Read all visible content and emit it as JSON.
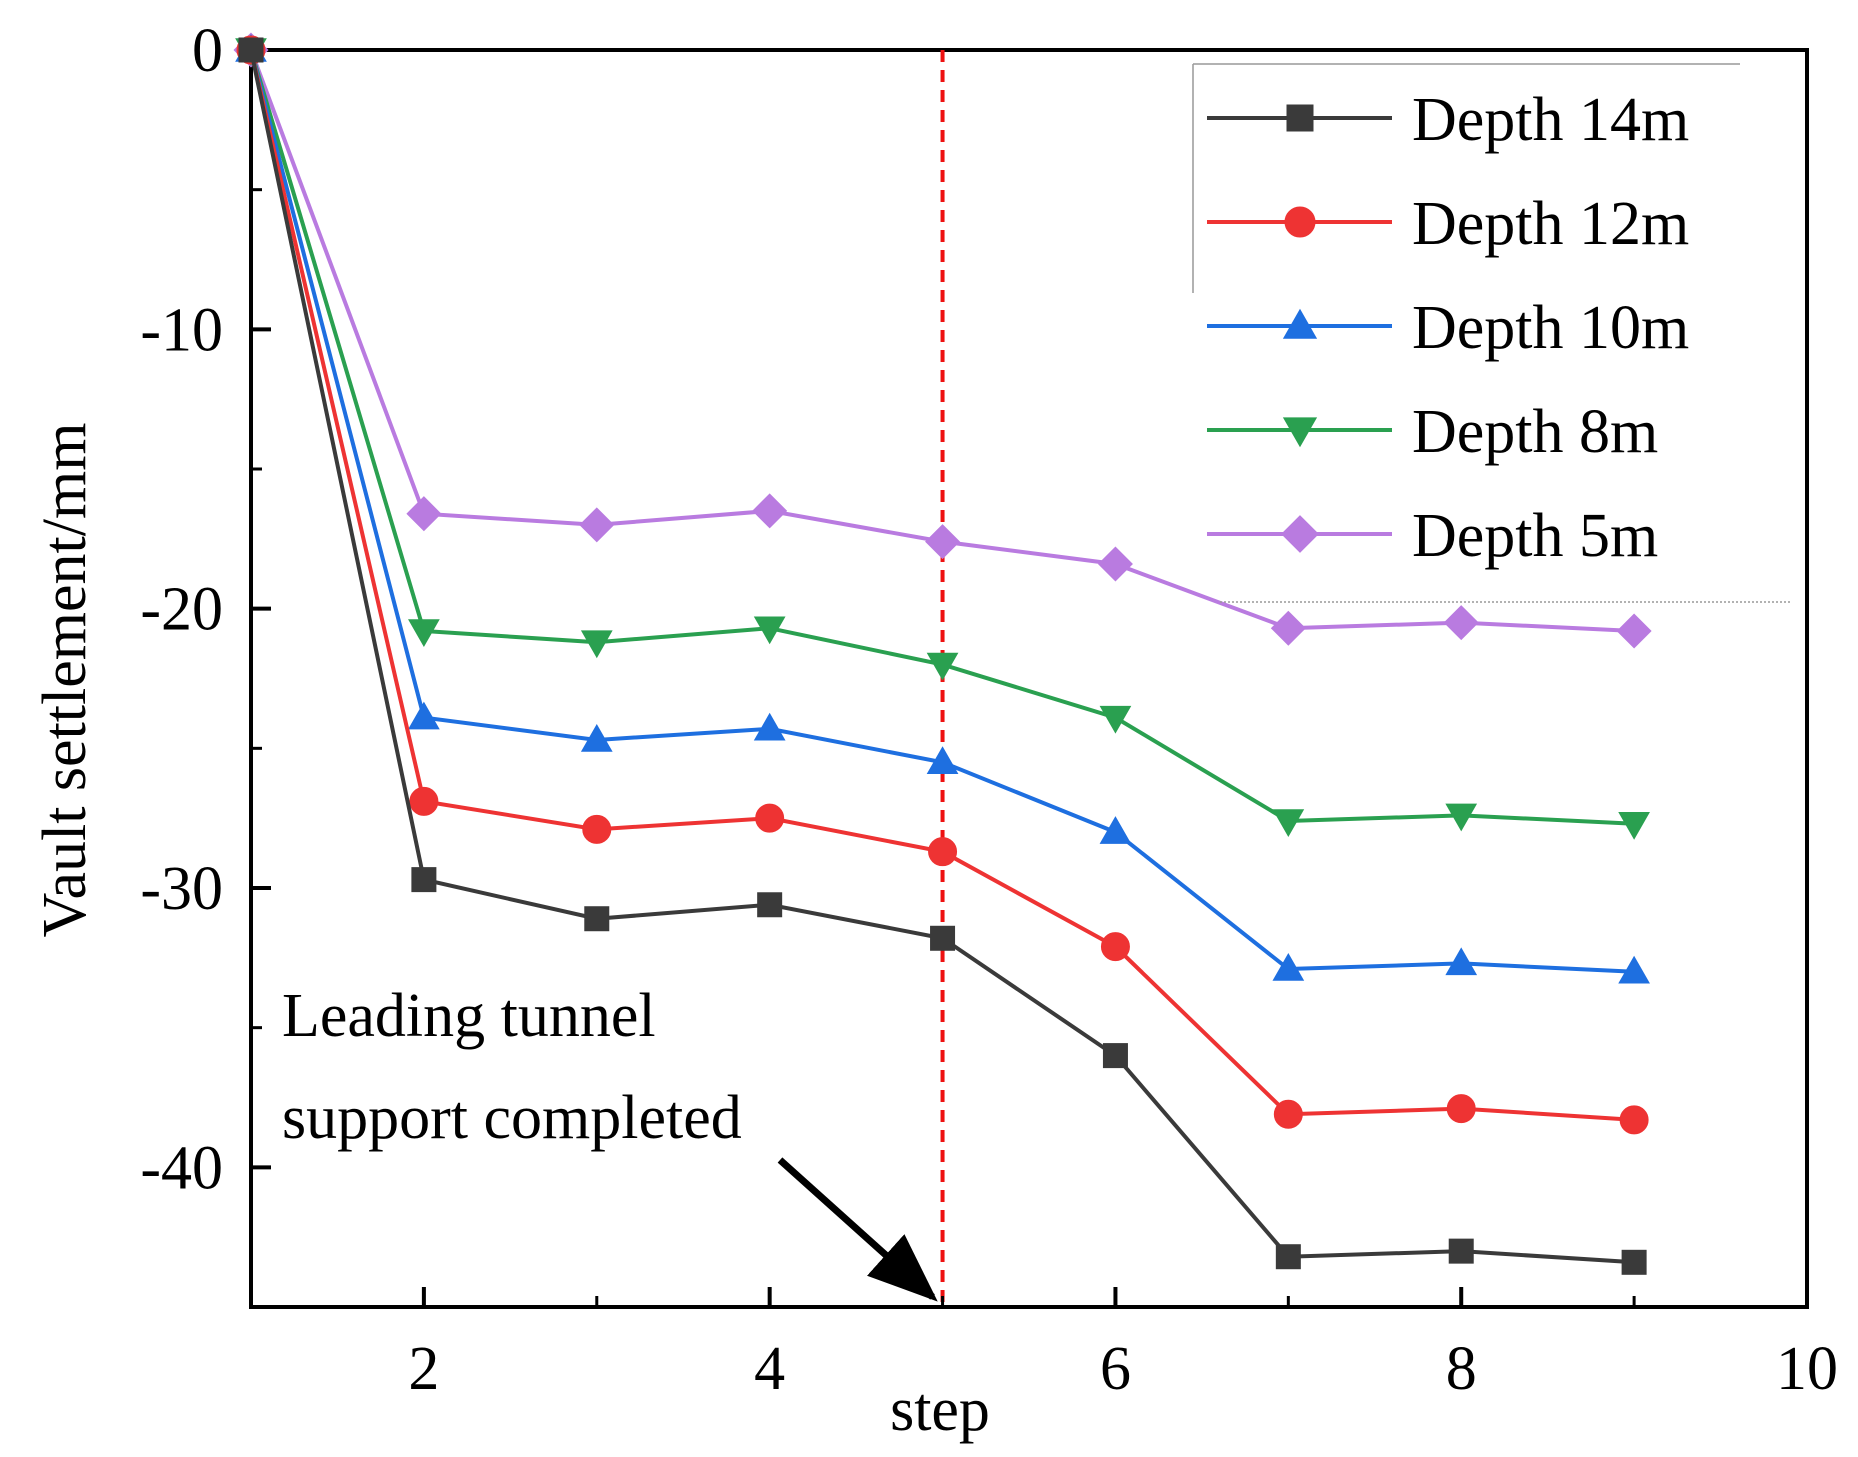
{
  "chart_data": {
    "type": "line",
    "title": "",
    "xlabel": "step",
    "ylabel": "Vault settlement/mm",
    "xlim": [
      1,
      10
    ],
    "ylim": [
      -45,
      0
    ],
    "xticks": [
      2,
      4,
      6,
      8,
      10
    ],
    "yticks": [
      0,
      -10,
      -20,
      -30,
      -40
    ],
    "x": [
      1,
      2,
      3,
      4,
      5,
      6,
      7,
      8,
      9
    ],
    "legend_position": "top-right",
    "series": [
      {
        "name": "Depth 14m",
        "color": "#3a3a3a",
        "marker": "square",
        "values": [
          0,
          -29.7,
          -31.1,
          -30.6,
          -31.8,
          -36.0,
          -43.2,
          -43.0,
          -43.4
        ]
      },
      {
        "name": "Depth 12m",
        "color": "#ee3333",
        "marker": "circle",
        "values": [
          0,
          -26.9,
          -27.9,
          -27.5,
          -28.7,
          -32.1,
          -38.1,
          -37.9,
          -38.3
        ]
      },
      {
        "name": "Depth 10m",
        "color": "#1e6fe0",
        "marker": "triangle-up",
        "values": [
          0,
          -23.9,
          -24.7,
          -24.3,
          -25.5,
          -28.0,
          -32.9,
          -32.7,
          -33.0
        ]
      },
      {
        "name": "Depth 8m",
        "color": "#2aa050",
        "marker": "triangle-down",
        "values": [
          0,
          -20.8,
          -21.2,
          -20.7,
          -22.0,
          -23.9,
          -27.6,
          -27.4,
          -27.7
        ]
      },
      {
        "name": "Depth 5m",
        "color": "#b97be0",
        "marker": "diamond",
        "values": [
          0,
          -16.6,
          -17.0,
          -16.5,
          -17.6,
          -18.4,
          -20.7,
          -20.5,
          -20.8
        ]
      }
    ],
    "annotation": {
      "line1": "Leading tunnel",
      "line2": "support completed",
      "x": 5,
      "color": "#ee1111"
    }
  }
}
